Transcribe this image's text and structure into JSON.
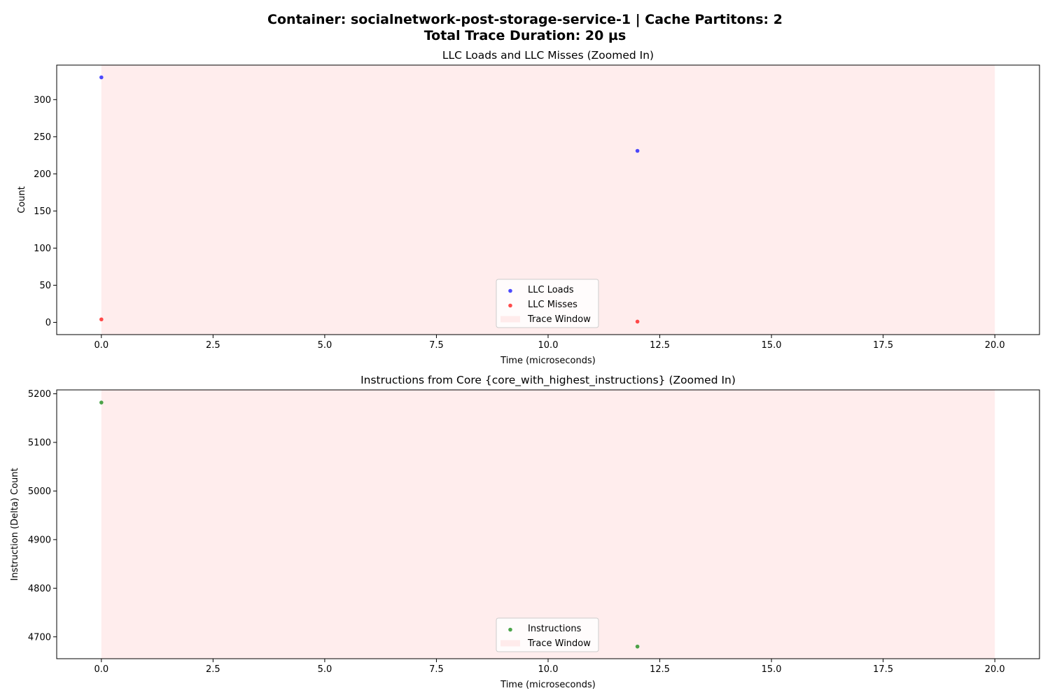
{
  "suptitle": {
    "line1": "Container: socialnetwork-post-storage-service-1 | Cache Partitons: 2",
    "line2": "Total Trace Duration: 20 µs"
  },
  "colors": {
    "llc_loads": "#0000ff",
    "llc_misses": "#ff0000",
    "instructions": "#008000",
    "trace_window": "#ffcccc"
  },
  "chart_data": [
    {
      "type": "scatter",
      "title": "LLC Loads and LLC Misses (Zoomed In)",
      "xlabel": "Time (microseconds)",
      "ylabel": "Count",
      "xlim": [
        -1.0,
        21.0
      ],
      "ylim": [
        -16.5,
        346.5
      ],
      "xticks": [
        0.0,
        2.5,
        5.0,
        7.5,
        10.0,
        12.5,
        15.0,
        17.5,
        20.0
      ],
      "xtick_labels": [
        "0.0",
        "2.5",
        "5.0",
        "7.5",
        "10.0",
        "12.5",
        "15.0",
        "17.5",
        "20.0"
      ],
      "yticks": [
        0,
        50,
        100,
        150,
        200,
        250,
        300
      ],
      "ytick_labels": [
        "0",
        "50",
        "100",
        "150",
        "200",
        "250",
        "300"
      ],
      "trace_window": [
        0,
        20
      ],
      "series": [
        {
          "name": "LLC Loads",
          "color": "#0000ff",
          "x": [
            0,
            12
          ],
          "y": [
            330,
            231
          ]
        },
        {
          "name": "LLC Misses",
          "color": "#ff0000",
          "x": [
            0,
            12
          ],
          "y": [
            4,
            1
          ]
        }
      ],
      "legend": {
        "placement": "lower center",
        "entries": [
          {
            "label": "LLC Loads",
            "kind": "marker",
            "color": "#0000ff"
          },
          {
            "label": "LLC Misses",
            "kind": "marker",
            "color": "#ff0000"
          },
          {
            "label": "Trace Window",
            "kind": "patch",
            "color": "#ffcccc"
          }
        ]
      },
      "grid": false
    },
    {
      "type": "scatter",
      "title": "Instructions from Core {core_with_highest_instructions} (Zoomed In)",
      "xlabel": "Time (microseconds)",
      "ylabel": "Instruction (Delta) Count",
      "xlim": [
        -1.0,
        21.0
      ],
      "ylim": [
        4655,
        5208
      ],
      "xticks": [
        0.0,
        2.5,
        5.0,
        7.5,
        10.0,
        12.5,
        15.0,
        17.5,
        20.0
      ],
      "xtick_labels": [
        "0.0",
        "2.5",
        "5.0",
        "7.5",
        "10.0",
        "12.5",
        "15.0",
        "17.5",
        "20.0"
      ],
      "yticks": [
        4700,
        4800,
        4900,
        5000,
        5100,
        5200
      ],
      "ytick_labels": [
        "4700",
        "4800",
        "4900",
        "5000",
        "5100",
        "5200"
      ],
      "trace_window": [
        0,
        20
      ],
      "series": [
        {
          "name": "Instructions",
          "color": "#008000",
          "x": [
            0,
            12
          ],
          "y": [
            5182,
            4680
          ]
        }
      ],
      "legend": {
        "placement": "lower center",
        "entries": [
          {
            "label": "Instructions",
            "kind": "marker",
            "color": "#008000"
          },
          {
            "label": "Trace Window",
            "kind": "patch",
            "color": "#ffcccc"
          }
        ]
      },
      "grid": false
    }
  ]
}
